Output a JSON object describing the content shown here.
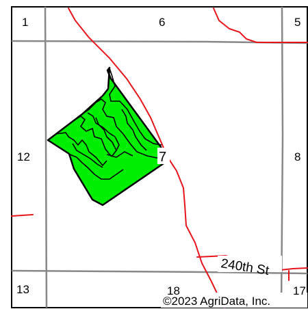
{
  "map": {
    "sections": [
      {
        "id": "1",
        "label": "1"
      },
      {
        "id": "6",
        "label": "6"
      },
      {
        "id": "5",
        "label": "5"
      },
      {
        "id": "12",
        "label": "12"
      },
      {
        "id": "7",
        "label": "7"
      },
      {
        "id": "8",
        "label": "8"
      },
      {
        "id": "13",
        "label": "13"
      },
      {
        "id": "18",
        "label": "18"
      },
      {
        "id": "17",
        "label": "17"
      }
    ],
    "road_label": "240th St",
    "copyright": "©2023 AgriData, Inc.",
    "colors": {
      "section_lines": "#888888",
      "roads": "#e8141c",
      "field_fill": "#00ee00",
      "field_outline": "#000000",
      "contours": "#000000"
    }
  }
}
